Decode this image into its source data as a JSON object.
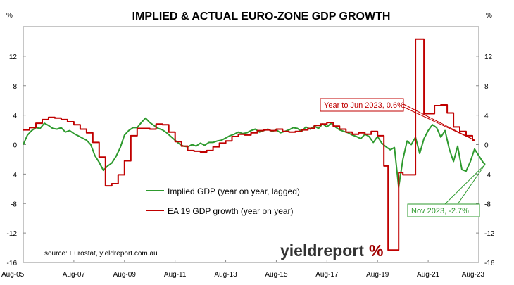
{
  "chart_data": {
    "type": "line",
    "title": "IMPLIED & ACTUAL EURO-ZONE GDP GROWTH",
    "y_unit_left": "%",
    "y_unit_right": "%",
    "ylim": [
      -16,
      16
    ],
    "yticks": [
      -16,
      -12,
      -8,
      -4,
      0,
      4,
      8,
      12
    ],
    "x_tick_labels": [
      "Aug-05",
      "Aug-07",
      "Aug-09",
      "Aug-11",
      "Aug-13",
      "Aug-15",
      "Aug-17",
      "Aug-19",
      "Aug-21",
      "Aug-23"
    ],
    "x_range": [
      "Aug-05",
      "Aug-23"
    ],
    "grid": false,
    "legend_position": "center-left",
    "source_note": "source: Eurostat, yieldreport.com.au",
    "logo_text": "yieldreport",
    "logo_symbol": "%",
    "series": [
      {
        "name": "Implied GDP (year on year, lagged)",
        "color": "#2e9a2e",
        "style": "smooth",
        "points": [
          [
            "2005-08",
            0.0
          ],
          [
            "2005-10",
            1.3
          ],
          [
            "2005-12",
            1.9
          ],
          [
            "2006-02",
            2.3
          ],
          [
            "2006-04",
            2.2
          ],
          [
            "2006-06",
            2.9
          ],
          [
            "2006-08",
            2.6
          ],
          [
            "2006-10",
            2.2
          ],
          [
            "2006-12",
            2.1
          ],
          [
            "2007-02",
            2.3
          ],
          [
            "2007-04",
            1.7
          ],
          [
            "2007-06",
            1.9
          ],
          [
            "2007-08",
            1.5
          ],
          [
            "2007-10",
            1.2
          ],
          [
            "2007-12",
            0.9
          ],
          [
            "2008-02",
            0.6
          ],
          [
            "2008-04",
            0.0
          ],
          [
            "2008-06",
            -1.5
          ],
          [
            "2008-08",
            -2.4
          ],
          [
            "2008-10",
            -3.5
          ],
          [
            "2008-12",
            -2.9
          ],
          [
            "2009-02",
            -2.5
          ],
          [
            "2009-04",
            -1.6
          ],
          [
            "2009-06",
            -0.4
          ],
          [
            "2009-08",
            1.3
          ],
          [
            "2009-10",
            1.9
          ],
          [
            "2009-12",
            2.3
          ],
          [
            "2010-02",
            2.3
          ],
          [
            "2010-04",
            3.0
          ],
          [
            "2010-06",
            3.6
          ],
          [
            "2010-08",
            3.0
          ],
          [
            "2010-10",
            2.6
          ],
          [
            "2010-12",
            2.2
          ],
          [
            "2011-02",
            2.0
          ],
          [
            "2011-04",
            1.6
          ],
          [
            "2011-06",
            1.1
          ],
          [
            "2011-08",
            0.6
          ],
          [
            "2011-10",
            0.1
          ],
          [
            "2011-12",
            -0.2
          ],
          [
            "2012-02",
            -0.3
          ],
          [
            "2012-04",
            0.0
          ],
          [
            "2012-06",
            -0.2
          ],
          [
            "2012-08",
            0.2
          ],
          [
            "2012-10",
            -0.1
          ],
          [
            "2012-12",
            0.3
          ],
          [
            "2013-02",
            0.3
          ],
          [
            "2013-04",
            0.5
          ],
          [
            "2013-06",
            0.6
          ],
          [
            "2013-08",
            0.9
          ],
          [
            "2013-10",
            1.2
          ],
          [
            "2013-12",
            1.4
          ],
          [
            "2014-02",
            1.7
          ],
          [
            "2014-04",
            1.5
          ],
          [
            "2014-06",
            1.6
          ],
          [
            "2014-08",
            1.9
          ],
          [
            "2014-10",
            2.1
          ],
          [
            "2014-12",
            1.7
          ],
          [
            "2015-02",
            1.9
          ],
          [
            "2015-04",
            2.1
          ],
          [
            "2015-06",
            1.8
          ],
          [
            "2015-08",
            2.0
          ],
          [
            "2015-10",
            1.6
          ],
          [
            "2015-12",
            1.8
          ],
          [
            "2016-02",
            2.0
          ],
          [
            "2016-04",
            2.3
          ],
          [
            "2016-06",
            2.2
          ],
          [
            "2016-08",
            1.8
          ],
          [
            "2016-10",
            2.4
          ],
          [
            "2016-12",
            2.1
          ],
          [
            "2017-02",
            2.5
          ],
          [
            "2017-04",
            2.2
          ],
          [
            "2017-06",
            2.8
          ],
          [
            "2017-08",
            2.4
          ],
          [
            "2017-10",
            2.9
          ],
          [
            "2017-12",
            2.4
          ],
          [
            "2018-02",
            2.0
          ],
          [
            "2018-04",
            1.8
          ],
          [
            "2018-06",
            1.6
          ],
          [
            "2018-08",
            1.3
          ],
          [
            "2018-10",
            1.1
          ],
          [
            "2018-12",
            0.8
          ],
          [
            "2019-02",
            1.4
          ],
          [
            "2019-04",
            1.1
          ],
          [
            "2019-06",
            0.3
          ],
          [
            "2019-08",
            1.1
          ],
          [
            "2019-10",
            0.2
          ],
          [
            "2019-12",
            -0.3
          ],
          [
            "2020-02",
            -0.7
          ],
          [
            "2020-04",
            -0.4
          ],
          [
            "2020-06",
            -5.8
          ],
          [
            "2020-08",
            -2.0
          ],
          [
            "2020-10",
            0.5
          ],
          [
            "2020-12",
            0.0
          ],
          [
            "2021-02",
            1.0
          ],
          [
            "2021-04",
            -1.2
          ],
          [
            "2021-06",
            0.8
          ],
          [
            "2021-08",
            1.9
          ],
          [
            "2021-10",
            2.7
          ],
          [
            "2021-12",
            2.3
          ],
          [
            "2022-02",
            1.0
          ],
          [
            "2022-04",
            1.9
          ],
          [
            "2022-06",
            -0.6
          ],
          [
            "2022-08",
            -2.3
          ],
          [
            "2022-10",
            -0.2
          ],
          [
            "2022-12",
            -3.4
          ],
          [
            "2023-02",
            -3.6
          ],
          [
            "2023-04",
            -2.3
          ],
          [
            "2023-06",
            -0.6
          ],
          [
            "2023-08",
            -1.5
          ],
          [
            "2023-10",
            -2.4
          ],
          [
            "2023-11",
            -2.7
          ]
        ]
      },
      {
        "name": "EA 19 GDP growth (year on year)",
        "color": "#c00000",
        "style": "step",
        "points": [
          [
            "2005-08",
            2.0
          ],
          [
            "2005-11",
            2.3
          ],
          [
            "2006-02",
            2.9
          ],
          [
            "2006-05",
            3.4
          ],
          [
            "2006-08",
            3.7
          ],
          [
            "2006-11",
            3.6
          ],
          [
            "2007-02",
            3.4
          ],
          [
            "2007-05",
            3.1
          ],
          [
            "2007-08",
            2.7
          ],
          [
            "2007-11",
            2.1
          ],
          [
            "2008-02",
            1.6
          ],
          [
            "2008-05",
            0.3
          ],
          [
            "2008-08",
            -1.7
          ],
          [
            "2008-11",
            -5.6
          ],
          [
            "2009-02",
            -5.3
          ],
          [
            "2009-05",
            -4.1
          ],
          [
            "2009-08",
            -2.2
          ],
          [
            "2009-11",
            1.2
          ],
          [
            "2010-02",
            2.2
          ],
          [
            "2010-05",
            2.2
          ],
          [
            "2010-08",
            2.1
          ],
          [
            "2010-11",
            2.8
          ],
          [
            "2011-02",
            2.7
          ],
          [
            "2011-05",
            1.7
          ],
          [
            "2011-08",
            0.4
          ],
          [
            "2011-11",
            -0.2
          ],
          [
            "2012-02",
            -0.8
          ],
          [
            "2012-05",
            -0.9
          ],
          [
            "2012-08",
            -1.0
          ],
          [
            "2012-11",
            -0.8
          ],
          [
            "2013-02",
            -0.3
          ],
          [
            "2013-05",
            0.2
          ],
          [
            "2013-08",
            0.5
          ],
          [
            "2013-11",
            1.1
          ],
          [
            "2014-02",
            1.4
          ],
          [
            "2014-05",
            1.3
          ],
          [
            "2014-08",
            1.6
          ],
          [
            "2014-11",
            1.9
          ],
          [
            "2015-02",
            2.0
          ],
          [
            "2015-05",
            1.9
          ],
          [
            "2015-08",
            2.1
          ],
          [
            "2015-11",
            1.8
          ],
          [
            "2016-02",
            1.7
          ],
          [
            "2016-05",
            1.8
          ],
          [
            "2016-08",
            2.0
          ],
          [
            "2016-11",
            2.2
          ],
          [
            "2017-02",
            2.6
          ],
          [
            "2017-05",
            2.8
          ],
          [
            "2017-08",
            3.0
          ],
          [
            "2017-11",
            2.5
          ],
          [
            "2018-02",
            2.1
          ],
          [
            "2018-05",
            1.7
          ],
          [
            "2018-08",
            1.4
          ],
          [
            "2018-11",
            1.6
          ],
          [
            "2019-02",
            1.4
          ],
          [
            "2019-05",
            1.8
          ],
          [
            "2019-08",
            1.2
          ],
          [
            "2019-11",
            -2.9
          ],
          [
            "2020-01",
            -14.3
          ],
          [
            "2020-05",
            -14.3
          ],
          [
            "2020-06",
            -3.8
          ],
          [
            "2020-08",
            -4.1
          ],
          [
            "2020-11",
            -4.1
          ],
          [
            "2021-02",
            14.3
          ],
          [
            "2021-05",
            14.3
          ],
          [
            "2021-06",
            4.2
          ],
          [
            "2021-08",
            4.2
          ],
          [
            "2021-11",
            5.3
          ],
          [
            "2022-02",
            5.4
          ],
          [
            "2022-05",
            4.3
          ],
          [
            "2022-08",
            2.4
          ],
          [
            "2022-11",
            1.8
          ],
          [
            "2023-02",
            1.2
          ],
          [
            "2023-05",
            0.6
          ],
          [
            "2023-06",
            0.6
          ]
        ]
      }
    ],
    "annotations": [
      {
        "text": "Year to Jun 2023, 0.6%",
        "color": "#c00000",
        "points_to": [
          "2023-06",
          0.6
        ]
      },
      {
        "text": "Nov 2023, -2.7%",
        "color": "#2e9a2e",
        "points_to": [
          "2023-11",
          -2.7
        ]
      }
    ]
  }
}
